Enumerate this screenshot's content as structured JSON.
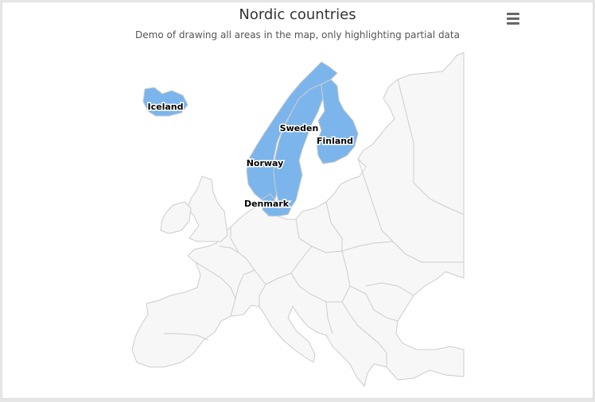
{
  "chart": {
    "title": "Nordic countries",
    "subtitle": "Demo of drawing all areas in the map, only highlighting partial data",
    "menu_icon": "hamburger-menu-icon"
  },
  "colors": {
    "highlight": "#7cb5ec",
    "null_area": "#f7f7f7",
    "border": "#cccccc",
    "background": "#ffffff"
  },
  "chart_data": {
    "type": "map",
    "region": "Europe",
    "highlighted": [
      {
        "name": "Iceland"
      },
      {
        "name": "Norway"
      },
      {
        "name": "Sweden"
      },
      {
        "name": "Finland"
      },
      {
        "name": "Denmark"
      }
    ]
  }
}
